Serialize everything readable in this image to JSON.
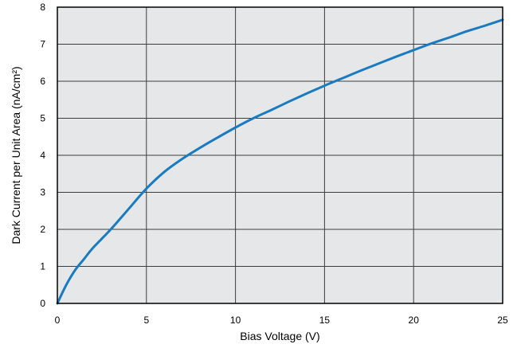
{
  "chart_data": {
    "type": "line",
    "title": "",
    "xlabel": "Bias Voltage (V)",
    "ylabel": "Dark Current per Unit Area (nA/cm²)",
    "xlim": [
      0,
      25
    ],
    "ylim": [
      0,
      8
    ],
    "x_ticks": [
      "0",
      "5",
      "10",
      "15",
      "20",
      "25"
    ],
    "y_ticks": [
      "0",
      "1",
      "2",
      "3",
      "4",
      "5",
      "6",
      "7",
      "8"
    ],
    "grid": true,
    "legend": "none",
    "colors": {
      "line": "#1a7bc1",
      "plot_background": "#e6e7e8",
      "grid": "#3c3c3c",
      "frame": "#000000"
    },
    "series": [
      {
        "x": [
          0,
          0.5,
          1,
          1.5,
          2,
          3,
          4,
          5,
          6,
          7,
          8,
          9,
          10,
          11,
          12,
          13,
          14,
          15,
          16,
          17,
          18,
          19,
          20,
          21,
          22,
          23,
          24,
          25
        ],
        "y": [
          0,
          0.5,
          0.9,
          1.2,
          1.5,
          2.0,
          2.55,
          3.1,
          3.55,
          3.9,
          4.2,
          4.48,
          4.75,
          5.0,
          5.22,
          5.45,
          5.67,
          5.88,
          6.08,
          6.28,
          6.47,
          6.66,
          6.84,
          7.02,
          7.18,
          7.35,
          7.5,
          7.66
        ]
      }
    ]
  }
}
